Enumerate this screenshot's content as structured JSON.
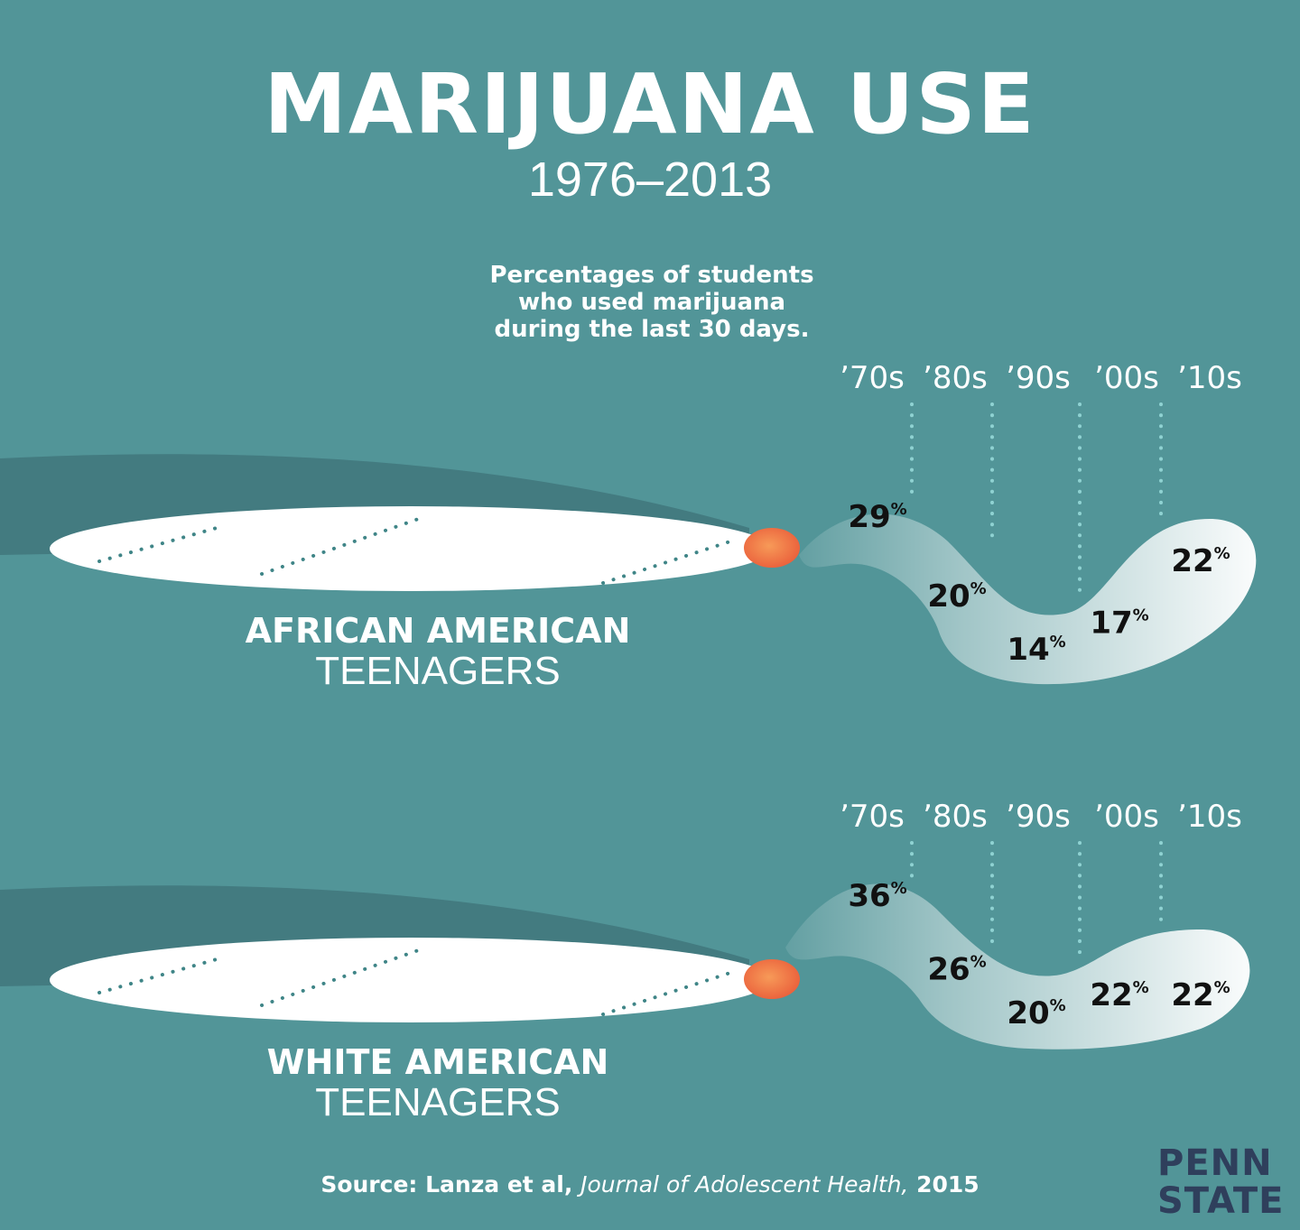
{
  "title": "MARIJUANA USE",
  "subtitle": "1976–2013",
  "caption": {
    "line1": "Percentages of students",
    "line2": "who used marijuana",
    "line3": "during the last 30 days."
  },
  "source": {
    "prefix": "Source: Lanza et al,",
    "journal": "Journal of Adolescent Health,",
    "year": "2015"
  },
  "logo": {
    "line1": "PENN",
    "line2": "STATE"
  },
  "colors": {
    "background": "#529598",
    "shadow": "#437b80",
    "joint": "#ffffff",
    "ember": "#f07a45",
    "dots": "#3f8587",
    "logo": "#2f3f5c"
  },
  "chart_data": [
    {
      "type": "line",
      "title": "AFRICAN AMERICAN TEENAGERS",
      "group_label": {
        "bold": "AFRICAN AMERICAN",
        "light": "TEENAGERS"
      },
      "categories": [
        "’70s",
        "’80s",
        "’90s",
        "’00s",
        "’10s"
      ],
      "values": [
        29,
        20,
        14,
        17,
        22
      ],
      "unit": "%"
    },
    {
      "type": "line",
      "title": "WHITE AMERICAN TEENAGERS",
      "group_label": {
        "bold": "WHITE AMERICAN",
        "light": "TEENAGERS"
      },
      "categories": [
        "’70s",
        "’80s",
        "’90s",
        "’00s",
        "’10s"
      ],
      "values": [
        36,
        26,
        20,
        22,
        22
      ],
      "unit": "%"
    }
  ]
}
